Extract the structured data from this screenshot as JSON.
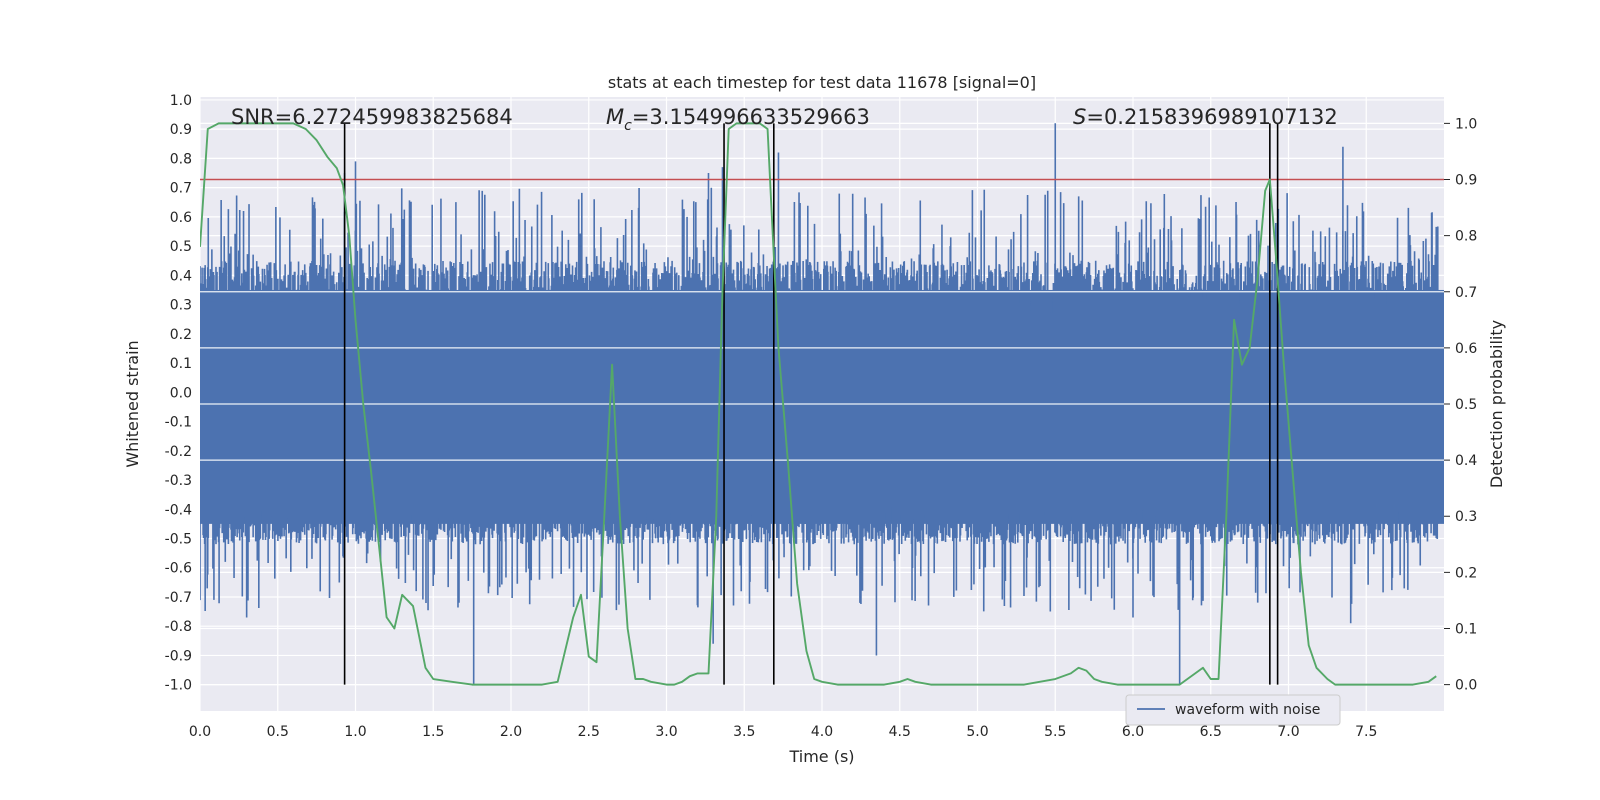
{
  "chart_data": {
    "type": "line",
    "title": "stats at each timestep for test data 11678 [signal=0]",
    "xlabel": "Time (s)",
    "ylabel_left": "Whitened strain",
    "ylabel_right": "Detection probability",
    "xlim": [
      0.0,
      8.0
    ],
    "ylim_left": [
      -1.09,
      1.01
    ],
    "ylim_right": [
      -0.047,
      1.047
    ],
    "x_ticks": [
      "0.0",
      "0.5",
      "1.0",
      "1.5",
      "2.0",
      "2.5",
      "3.0",
      "3.5",
      "4.0",
      "4.5",
      "5.0",
      "5.5",
      "6.0",
      "6.5",
      "7.0",
      "7.5"
    ],
    "y_ticks_left": [
      "1.0",
      "0.9",
      "0.8",
      "0.7",
      "0.6",
      "0.5",
      "0.4",
      "0.3",
      "0.2",
      "0.1",
      "0.0",
      "-0.1",
      "-0.2",
      "-0.3",
      "-0.4",
      "-0.5",
      "-0.6",
      "-0.7",
      "-0.8",
      "-0.9",
      "-1.0"
    ],
    "y_ticks_right": [
      "1.0",
      "0.9",
      "0.8",
      "0.7",
      "0.6",
      "0.5",
      "0.4",
      "0.3",
      "0.2",
      "0.1",
      "0.0"
    ],
    "annotations": {
      "snr": "SNR=6.272459983825684",
      "mc_symbol": "M",
      "mc_sub": "c",
      "mc_value": "=3.154996633529663",
      "s_symbol": "S",
      "s_value": "=0.2158396989107132"
    },
    "threshold": 0.9,
    "vertical_lines": [
      0.93,
      3.37,
      3.69,
      6.88,
      6.93
    ],
    "waveform": {
      "name": "waveform with noise",
      "color": "#4c72b0",
      "core_range": [
        -0.45,
        0.35
      ],
      "notable_peaks": [
        [
          0.93,
          0.75
        ],
        [
          3.27,
          0.75
        ],
        [
          3.72,
          0.82
        ],
        [
          5.5,
          0.92
        ],
        [
          7.35,
          0.84
        ],
        [
          1.0,
          0.79
        ],
        [
          0.28,
          0.62
        ],
        [
          3.36,
          0.77
        ]
      ],
      "notable_troughs": [
        [
          0.3,
          -0.77
        ],
        [
          1.76,
          -1.0
        ],
        [
          3.3,
          -0.86
        ],
        [
          4.35,
          -0.9
        ],
        [
          6.3,
          -1.0
        ],
        [
          7.4,
          -0.79
        ],
        [
          6.0,
          -0.77
        ]
      ]
    },
    "probability": {
      "color": "#55a868",
      "x": [
        0.0,
        0.05,
        0.12,
        0.2,
        0.3,
        0.4,
        0.5,
        0.6,
        0.68,
        0.75,
        0.82,
        0.88,
        0.92,
        0.96,
        1.0,
        1.05,
        1.1,
        1.15,
        1.2,
        1.25,
        1.3,
        1.37,
        1.45,
        1.5,
        1.62,
        1.75,
        1.85,
        2.0,
        2.1,
        2.2,
        2.3,
        2.4,
        2.45,
        2.5,
        2.55,
        2.6,
        2.65,
        2.7,
        2.75,
        2.8,
        2.85,
        2.9,
        3.0,
        3.05,
        3.1,
        3.15,
        3.2,
        3.27,
        3.32,
        3.36,
        3.4,
        3.45,
        3.5,
        3.55,
        3.6,
        3.65,
        3.68,
        3.72,
        3.78,
        3.84,
        3.9,
        3.95,
        4.0,
        4.1,
        4.2,
        4.3,
        4.4,
        4.5,
        4.55,
        4.6,
        4.7,
        4.8,
        4.9,
        5.0,
        5.1,
        5.2,
        5.3,
        5.4,
        5.5,
        5.6,
        5.65,
        5.7,
        5.75,
        5.8,
        5.9,
        6.0,
        6.1,
        6.2,
        6.3,
        6.35,
        6.4,
        6.45,
        6.5,
        6.55,
        6.6,
        6.65,
        6.7,
        6.75,
        6.8,
        6.85,
        6.88,
        6.92,
        6.97,
        7.02,
        7.08,
        7.13,
        7.18,
        7.25,
        7.3,
        7.4,
        7.5,
        7.6,
        7.7,
        7.8,
        7.9,
        7.95
      ],
      "y": [
        0.78,
        0.99,
        1.0,
        1.0,
        1.0,
        1.0,
        1.0,
        1.0,
        0.99,
        0.97,
        0.94,
        0.92,
        0.89,
        0.8,
        0.65,
        0.5,
        0.38,
        0.25,
        0.12,
        0.1,
        0.16,
        0.14,
        0.03,
        0.01,
        0.005,
        0.0,
        0.0,
        0.0,
        0.0,
        0.0,
        0.005,
        0.12,
        0.16,
        0.05,
        0.04,
        0.3,
        0.57,
        0.3,
        0.1,
        0.01,
        0.01,
        0.005,
        0.0,
        0.0,
        0.005,
        0.015,
        0.02,
        0.02,
        0.3,
        0.7,
        0.99,
        1.0,
        1.0,
        1.0,
        1.0,
        0.99,
        0.82,
        0.6,
        0.4,
        0.18,
        0.06,
        0.01,
        0.005,
        0.0,
        0.0,
        0.0,
        0.0,
        0.005,
        0.01,
        0.005,
        0.0,
        0.0,
        0.0,
        0.0,
        0.0,
        0.0,
        0.0,
        0.005,
        0.01,
        0.02,
        0.03,
        0.025,
        0.01,
        0.005,
        0.0,
        0.0,
        0.0,
        0.0,
        0.0,
        0.01,
        0.02,
        0.03,
        0.01,
        0.01,
        0.3,
        0.65,
        0.57,
        0.6,
        0.72,
        0.88,
        0.9,
        0.76,
        0.57,
        0.4,
        0.2,
        0.07,
        0.03,
        0.01,
        0.0,
        0.0,
        0.0,
        0.0,
        0.0,
        0.0,
        0.005,
        0.015
      ]
    }
  },
  "legend": {
    "label": "waveform with noise"
  }
}
